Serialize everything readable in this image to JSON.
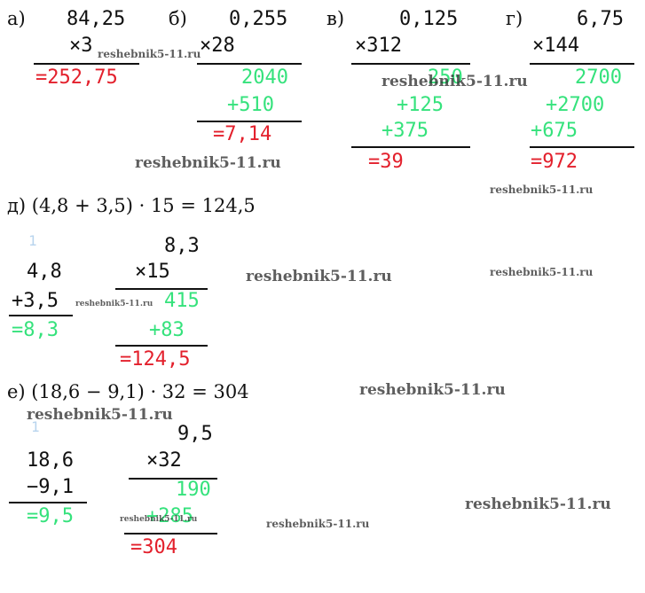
{
  "problems": [
    {
      "label": "а)",
      "lines": [
        "84,25",
        "×3",
        "=252,75"
      ]
    },
    {
      "label": "б)",
      "lines": [
        "0,255",
        "×28",
        "2040",
        "+510",
        "=7,14"
      ]
    },
    {
      "label": "в)",
      "lines": [
        "0,125",
        "×312",
        "250",
        "+125",
        "+375",
        "=39"
      ]
    },
    {
      "label": "г)",
      "lines": [
        "6,75",
        "×144",
        "2700",
        "+2700",
        "+675",
        "=972"
      ]
    },
    {
      "expression": "д) (4,8 + 3,5) · 15 = 124,5",
      "carry": "1",
      "lines": [
        "4,8",
        "+3,5",
        "=8,3",
        "8,3",
        "×15",
        "415",
        "+83",
        "=124,5"
      ]
    },
    {
      "expression": "е) (18,6 − 9,1) · 32 = 304",
      "carry": "1",
      "lines": [
        "9,5",
        "18,6",
        "−9,1",
        "=9,5",
        "×32",
        "190",
        "+285",
        "=304"
      ]
    }
  ],
  "watermarks": [
    "reshebnik5-11.ru",
    "reshebnik5-11.ru",
    "reshebnik5-11.ru",
    "reshebnik5-11.ru",
    "reshebnik5-11.ru",
    "reshebnik5-11.ru",
    "reshebnik5-11.ru",
    "reshebnik5-11.ru",
    "reshebnik5-11.ru",
    "reshebnik5-11.ru",
    "reshebnik5-11.ru",
    "reshebnik5-11.ru"
  ]
}
